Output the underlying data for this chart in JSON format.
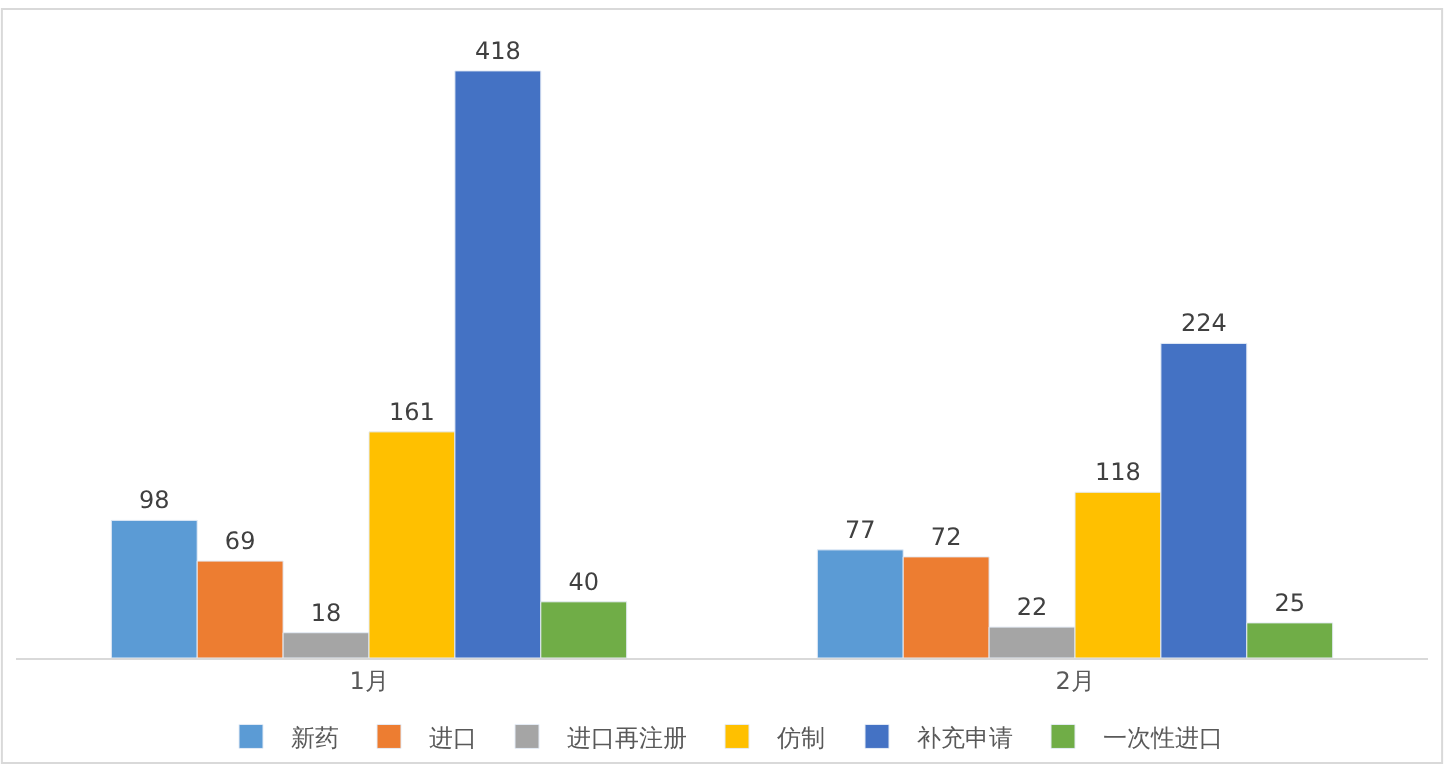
{
  "chart_data": {
    "type": "bar",
    "categories": [
      "1月",
      "2月"
    ],
    "series": [
      {
        "name": "新药",
        "color": "#5b9bd5",
        "values": [
          98,
          77
        ]
      },
      {
        "name": "进口",
        "color": "#ed7d31",
        "values": [
          69,
          72
        ]
      },
      {
        "name": "进口再注册",
        "color": "#a5a5a5",
        "values": [
          18,
          22
        ]
      },
      {
        "name": "仿制",
        "color": "#ffc000",
        "values": [
          161,
          118
        ]
      },
      {
        "name": "补充申请",
        "color": "#4472c4",
        "values": [
          418,
          224
        ]
      },
      {
        "name": "一次性进口",
        "color": "#70ad47",
        "values": [
          40,
          25
        ]
      }
    ],
    "data_labels": true,
    "legend": "bottom",
    "tick_labels": "x"
  }
}
